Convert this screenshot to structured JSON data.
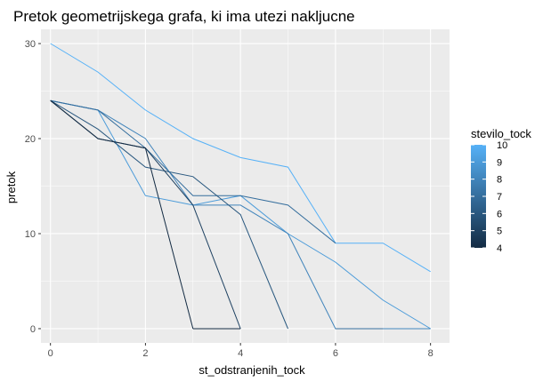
{
  "chart_data": {
    "type": "line",
    "title": "Pretok geometrijskega grafa, ki ima utezi nakljucne",
    "xlabel": "st_odstranjenih_tock",
    "ylabel": "pretok",
    "xlim": [
      -0.2,
      8.4
    ],
    "ylim": [
      -1.5,
      31.5
    ],
    "x_ticks": [
      0,
      2,
      4,
      6,
      8
    ],
    "y_ticks": [
      0,
      10,
      20,
      30
    ],
    "grid": true,
    "legend": {
      "title": "stevilo_tock",
      "position": "right",
      "type": "colorbar",
      "range": [
        4,
        10
      ],
      "labels": [
        "10",
        "9",
        "8",
        "7",
        "6",
        "5",
        "4"
      ],
      "low_color": "#132B43",
      "high_color": "#56B1F7"
    },
    "series": [
      {
        "color_value": 10,
        "x": [
          0,
          1,
          2,
          3,
          4,
          5,
          6,
          7,
          8
        ],
        "y": [
          30,
          27,
          23,
          20,
          18,
          17,
          9,
          9,
          6
        ]
      },
      {
        "color_value": 9,
        "x": [
          0,
          1,
          2,
          3,
          4,
          5,
          6,
          7,
          8
        ],
        "y": [
          24,
          23,
          14,
          13,
          14,
          10,
          7,
          3,
          0
        ]
      },
      {
        "color_value": 8,
        "x": [
          0,
          1,
          2,
          3,
          4,
          5,
          6,
          7
        ],
        "y": [
          24,
          23,
          20,
          13,
          13,
          10,
          0,
          0
        ]
      },
      {
        "color_value": 7,
        "x": [
          0,
          1,
          2,
          3,
          4,
          5,
          6
        ],
        "y": [
          24,
          23,
          19,
          14,
          14,
          13,
          9
        ]
      },
      {
        "color_value": 6,
        "x": [
          0,
          1,
          2,
          3,
          4,
          5
        ],
        "y": [
          24,
          21,
          17,
          16,
          12,
          0
        ]
      },
      {
        "color_value": 5,
        "x": [
          0,
          1,
          2,
          3,
          4
        ],
        "y": [
          24,
          20,
          19,
          13,
          0
        ]
      },
      {
        "color_value": 4,
        "x": [
          0,
          1,
          2,
          3
        ],
        "y": [
          24,
          20,
          19,
          0
        ]
      },
      {
        "color_value": 7,
        "x": [
          6,
          7
        ],
        "y": [
          0,
          0
        ]
      },
      {
        "color_value": 8,
        "x": [
          7,
          8
        ],
        "y": [
          0,
          0
        ]
      },
      {
        "color_value": 4,
        "x": [
          3,
          4
        ],
        "y": [
          0,
          0
        ]
      }
    ]
  }
}
